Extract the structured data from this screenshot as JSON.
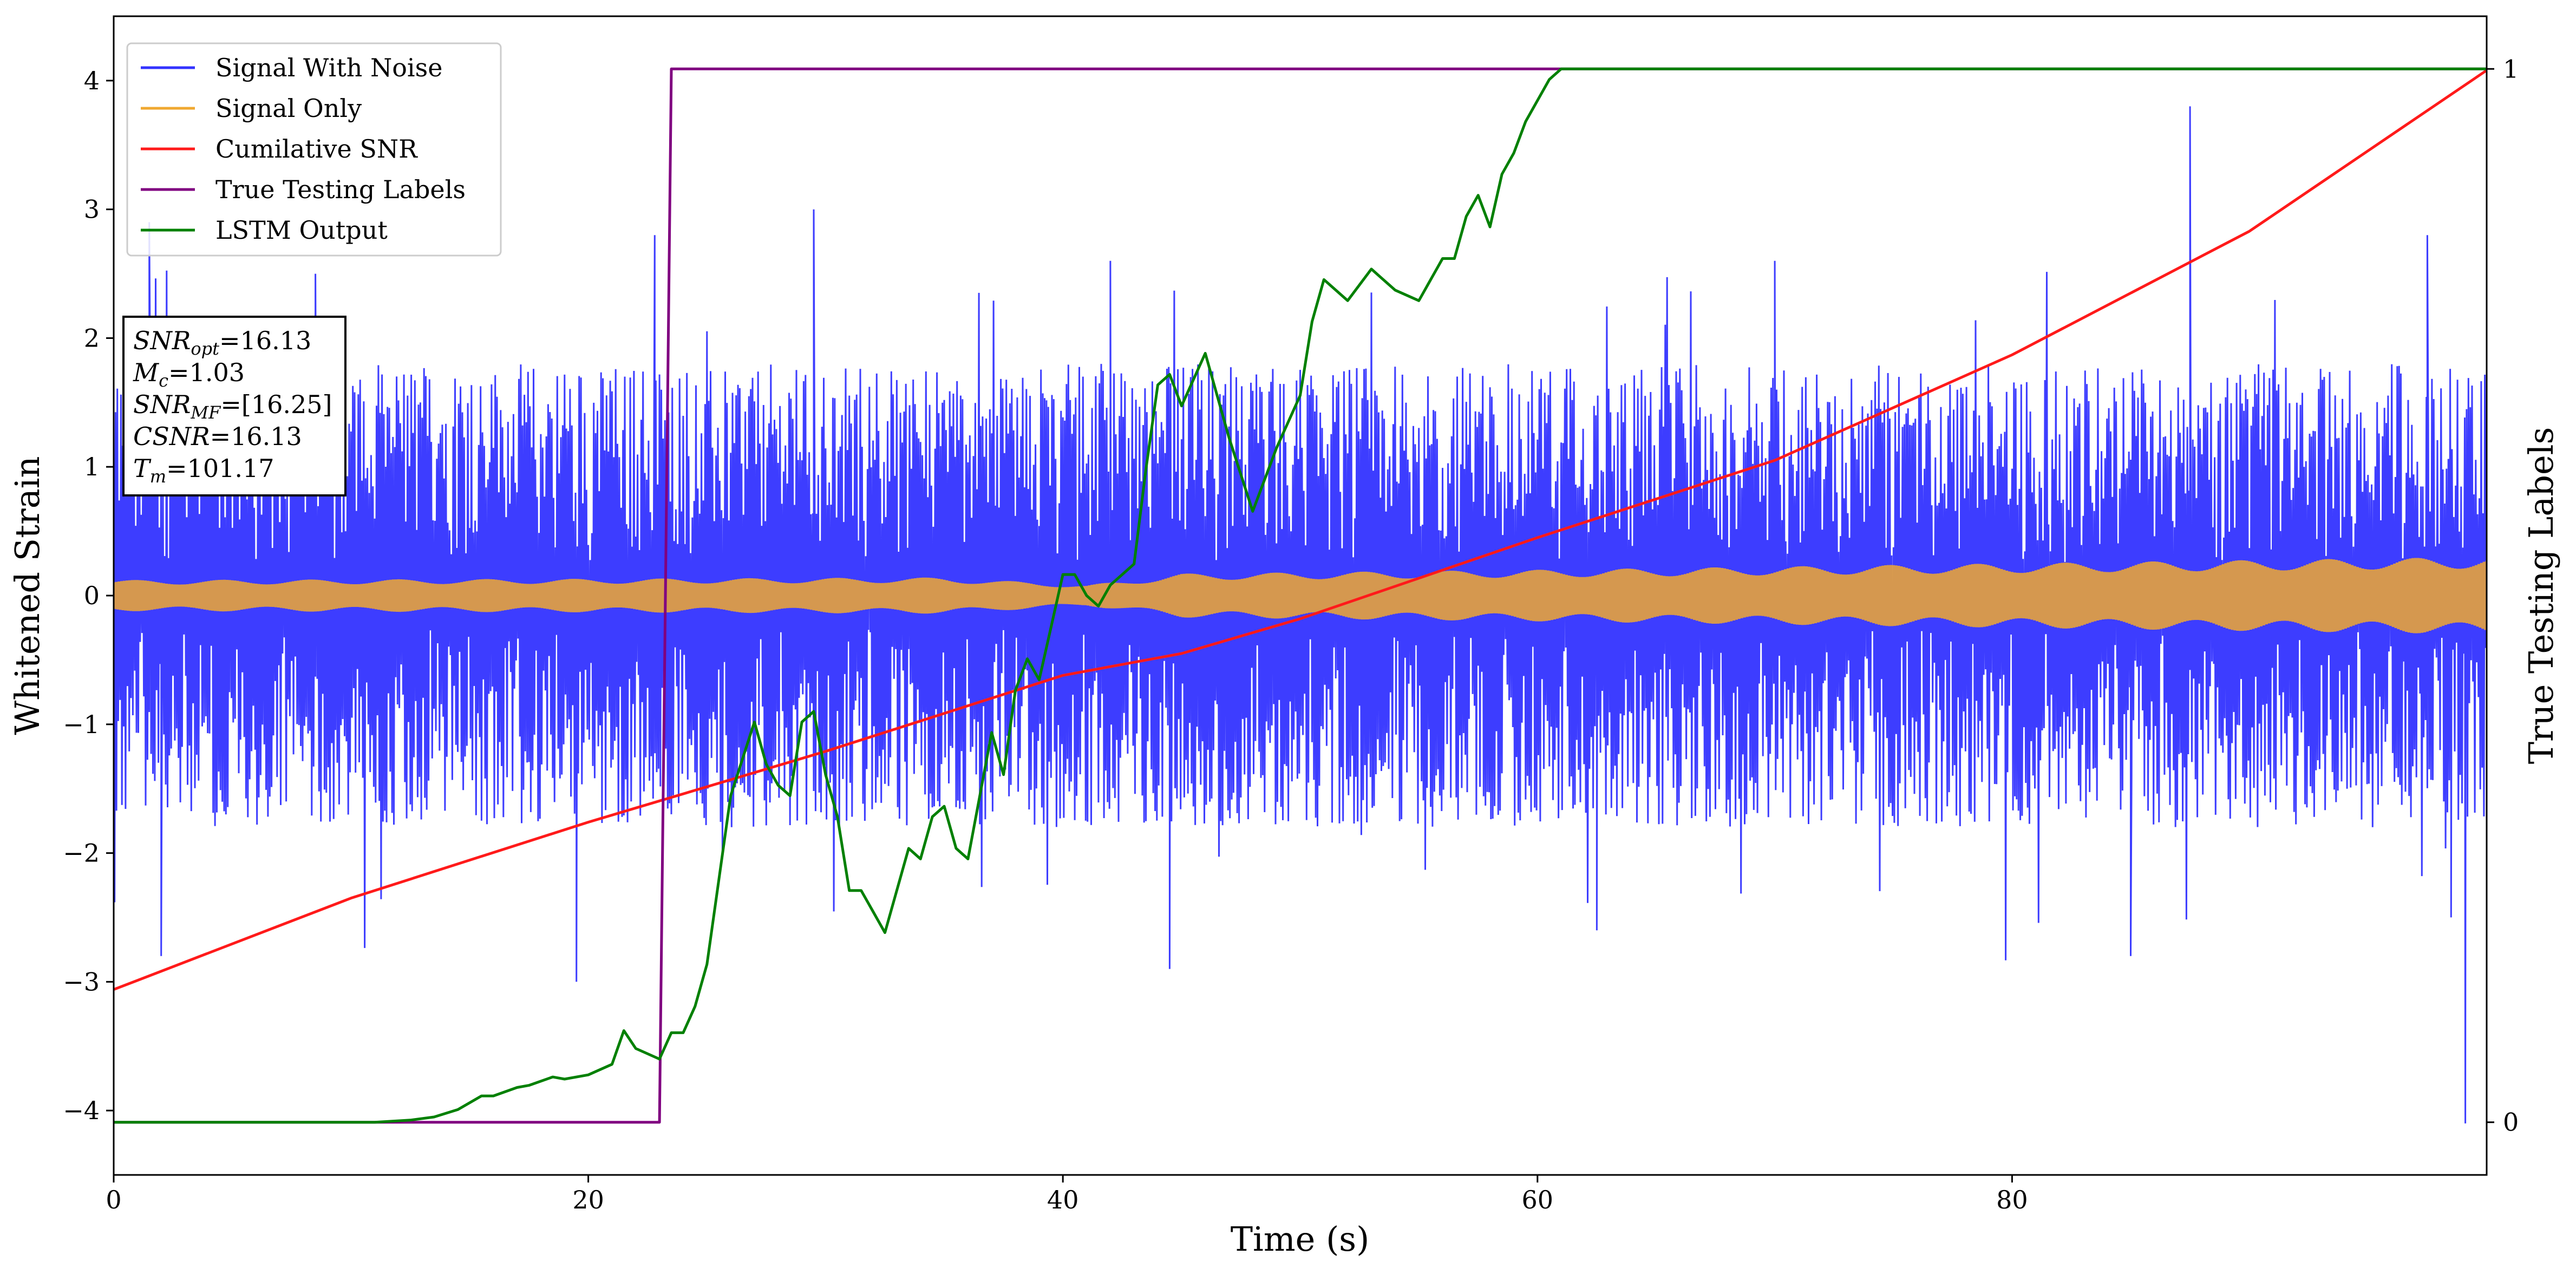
{
  "chart_data": {
    "type": "line",
    "xlabel": "Time (s)",
    "ylabel": "Whitened Strain",
    "ylabel_right": "True Testing Labels",
    "xlim": [
      0,
      100
    ],
    "ylim": [
      -4.5,
      4.5
    ],
    "ylim_right": [
      -0.05,
      1.05
    ],
    "x_ticks": [
      0,
      20,
      40,
      60,
      80
    ],
    "x_tick_labels": [
      "0",
      "20",
      "40",
      "60",
      "80"
    ],
    "y_ticks": [
      -4,
      -3,
      -2,
      -1,
      0,
      1,
      2,
      3,
      4
    ],
    "y_tick_labels": [
      "−4",
      "−3",
      "−2",
      "−1",
      "0",
      "1",
      "2",
      "3",
      "4"
    ],
    "y_right_ticks": [
      0,
      1
    ],
    "y_right_tick_labels": [
      "0",
      "1"
    ],
    "grid": false,
    "legend_position": "upper-left",
    "legend": [
      {
        "label": "Signal With Noise",
        "color": "#3333ff"
      },
      {
        "label": "Signal Only",
        "color": "#f0a830"
      },
      {
        "label": "Cumilative SNR",
        "color": "#ff1a1a"
      },
      {
        "label": "True Testing Labels",
        "color": "#800080"
      },
      {
        "label": "LSTM Output",
        "color": "#008000"
      }
    ],
    "annotation": {
      "position": "upper-left",
      "lines": [
        {
          "label": "SNR",
          "sub": "opt",
          "value": "=16.13"
        },
        {
          "label": "M",
          "sub": "c",
          "value": "=1.03"
        },
        {
          "label": "SNR",
          "sub": "MF",
          "value": "=[16.25]"
        },
        {
          "label": "CSNR",
          "sub": "",
          "value": "=16.13"
        },
        {
          "label": "T",
          "sub": "m",
          "value": "=101.17"
        }
      ]
    },
    "series": [
      {
        "name": "Signal With Noise",
        "color": "#3333ff",
        "axis": "left",
        "style": "dense noisy oscillation",
        "x_range": [
          0,
          100
        ],
        "upper_envelope_typical": 1.6,
        "lower_envelope_typical": -1.6,
        "spikes": [
          [
            1.5,
            2.9
          ],
          [
            8.5,
            2.5
          ],
          [
            22.8,
            2.8
          ],
          [
            29.5,
            3.0
          ],
          [
            42,
            2.6
          ],
          [
            70,
            2.6
          ],
          [
            87.5,
            3.8
          ],
          [
            97.5,
            2.8
          ],
          [
            2,
            -2.8
          ],
          [
            19.5,
            -3.0
          ],
          [
            44.5,
            -2.9
          ],
          [
            62.5,
            -2.6
          ],
          [
            85,
            -2.8
          ],
          [
            98.5,
            -2.5
          ],
          [
            99.1,
            -4.1
          ]
        ]
      },
      {
        "name": "Signal Only",
        "color": "#f0a830",
        "axis": "left",
        "style": "dense oscillation band",
        "envelope": {
          "x": [
            0,
            20,
            35,
            41,
            45,
            60,
            80,
            100
          ],
          "amp": [
            0.12,
            0.13,
            0.14,
            0.08,
            0.17,
            0.2,
            0.25,
            0.3
          ]
        }
      },
      {
        "name": "Cumilative SNR",
        "color": "#ff1a1a",
        "axis": "left",
        "x": [
          0,
          10,
          20,
          30,
          40,
          45,
          50,
          60,
          70,
          80,
          90,
          100
        ],
        "y": [
          -3.06,
          -2.35,
          -1.76,
          -1.21,
          -0.62,
          -0.45,
          -0.18,
          0.45,
          1.05,
          1.87,
          2.83,
          4.08
        ]
      },
      {
        "name": "True Testing Labels",
        "color": "#800080",
        "axis": "right",
        "x": [
          0,
          23.0,
          23.5,
          100
        ],
        "y": [
          0,
          0,
          1,
          1
        ]
      },
      {
        "name": "LSTM Output",
        "color": "#008000",
        "axis": "right",
        "x": [
          0,
          11,
          12.5,
          13.5,
          14.5,
          15.5,
          16,
          17,
          17.5,
          18.5,
          19,
          20,
          21,
          21.5,
          22,
          23,
          23.5,
          24,
          24.5,
          25,
          25.5,
          26,
          27,
          27.5,
          28,
          28.5,
          29,
          29.5,
          30,
          30.5,
          31,
          31.5,
          32,
          32.5,
          33.5,
          34,
          34.5,
          35,
          35.5,
          36,
          37,
          37.5,
          38,
          38.5,
          39,
          39.5,
          40,
          40.5,
          41,
          41.5,
          42,
          42.5,
          43,
          43.5,
          44,
          44.5,
          45,
          46,
          46.5,
          47,
          48,
          49,
          50,
          50.5,
          51,
          51.5,
          52,
          53,
          53.5,
          54,
          55,
          55.5,
          56,
          56.5,
          57,
          57.5,
          58,
          58.5,
          59,
          59.5,
          60,
          60.5,
          61,
          62,
          63,
          64,
          66,
          68,
          70,
          75,
          80,
          90,
          100
        ],
        "y": [
          0,
          0,
          0.002,
          0.005,
          0.012,
          0.025,
          0.025,
          0.033,
          0.035,
          0.043,
          0.041,
          0.045,
          0.055,
          0.087,
          0.07,
          0.06,
          0.085,
          0.085,
          0.11,
          0.15,
          0.23,
          0.31,
          0.38,
          0.34,
          0.32,
          0.31,
          0.38,
          0.39,
          0.33,
          0.29,
          0.22,
          0.22,
          0.2,
          0.18,
          0.26,
          0.25,
          0.29,
          0.3,
          0.26,
          0.25,
          0.37,
          0.33,
          0.41,
          0.44,
          0.42,
          0.47,
          0.52,
          0.52,
          0.5,
          0.49,
          0.51,
          0.52,
          0.53,
          0.62,
          0.7,
          0.71,
          0.68,
          0.73,
          0.69,
          0.65,
          0.58,
          0.64,
          0.69,
          0.76,
          0.8,
          0.79,
          0.78,
          0.81,
          0.8,
          0.79,
          0.78,
          0.8,
          0.82,
          0.82,
          0.86,
          0.88,
          0.85,
          0.9,
          0.92,
          0.95,
          0.97,
          0.99,
          1.0,
          1.0,
          1.0,
          1.0,
          1.0,
          1.0,
          1.0,
          1.0,
          1.0,
          1.0,
          1.0
        ]
      }
    ]
  }
}
